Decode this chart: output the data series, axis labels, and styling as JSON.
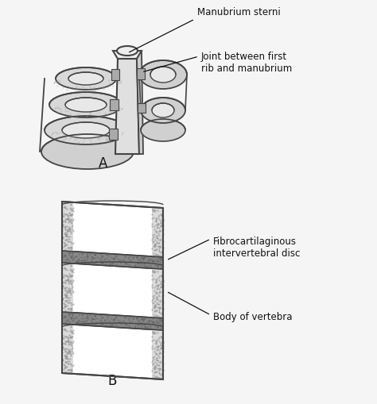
{
  "background_color": "#f5f5f5",
  "fig_width": 4.74,
  "fig_height": 5.1,
  "label_A": "A",
  "label_B": "B",
  "label_manubrium": "Manubrium sterni",
  "label_joint": "Joint between first\nrib and manubrium",
  "label_fibro": "Fibrocartilaginous\nintervertebral disc",
  "label_body": "Body of vertebra",
  "text_color": "#111111",
  "draw_color": "#444444",
  "gray_fill": "#aaaaaa",
  "dark_gray": "#666666",
  "stipple_color": "#999999",
  "bone_color": "#e8e8e8"
}
